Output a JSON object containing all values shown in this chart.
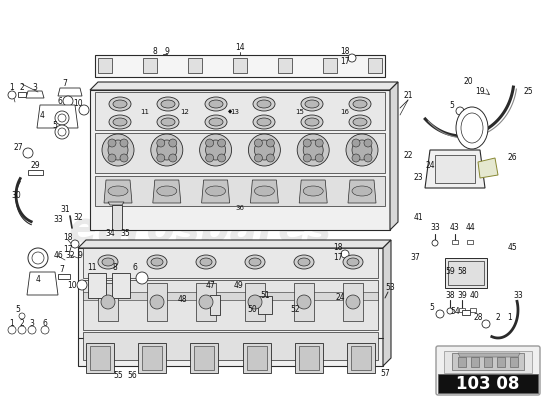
{
  "background_color": "#ffffff",
  "page_number": "103 08",
  "watermark_color_euro": "#e0e0e0",
  "watermark_color_sub": "#e8e8e8",
  "line_color": "#2a2a2a",
  "figsize": [
    5.5,
    4.0
  ],
  "dpi": 100
}
